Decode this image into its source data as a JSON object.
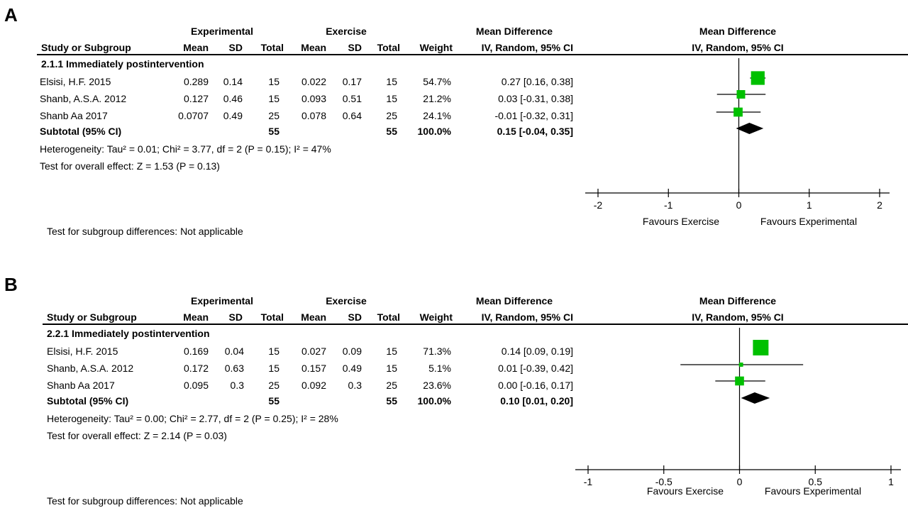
{
  "panels": [
    {
      "letter": "A",
      "headers": {
        "experimental": "Experimental",
        "exercise": "Exercise",
        "mean_difference": "Mean Difference",
        "study_or_subgroup": "Study or Subgroup",
        "mean": "Mean",
        "sd": "SD",
        "total": "Total",
        "weight": "Weight",
        "md_method": "IV, Random, 95% CI",
        "plot_title": "Mean Difference",
        "plot_method": "IV, Random, 95% CI"
      },
      "subgroup_title": "2.1.1 Immediately postintervention",
      "studies": [
        {
          "name": "Elsisi, H.F. 2015",
          "exp_mean": "0.289",
          "exp_sd": "0.14",
          "exp_total": "15",
          "ctl_mean": "0.022",
          "ctl_sd": "0.17",
          "ctl_total": "15",
          "weight": "54.7%",
          "ci_text": "0.27 [0.16, 0.38]"
        },
        {
          "name": "Shanb, A.S.A. 2012",
          "exp_mean": "0.127",
          "exp_sd": "0.46",
          "exp_total": "15",
          "ctl_mean": "0.093",
          "ctl_sd": "0.51",
          "ctl_total": "15",
          "weight": "21.2%",
          "ci_text": "0.03 [-0.31, 0.38]"
        },
        {
          "name": "Shanb Aa 2017",
          "exp_mean": "0.0707",
          "exp_sd": "0.49",
          "exp_total": "25",
          "ctl_mean": "0.078",
          "ctl_sd": "0.64",
          "ctl_total": "25",
          "weight": "24.1%",
          "ci_text": "-0.01 [-0.32, 0.31]"
        }
      ],
      "subtotal": {
        "label": "Subtotal (95% CI)",
        "exp_total": "55",
        "ctl_total": "55",
        "weight": "100.0%",
        "ci_text": "0.15 [-0.04, 0.35]"
      },
      "heterogeneity": "Heterogeneity: Tau² = 0.01; Chi² = 3.77, df = 2 (P = 0.15); I² = 47%",
      "overall_effect": "Test for overall effect: Z = 1.53 (P = 0.13)",
      "subgroup_differences": "Test for subgroup differences: Not applicable",
      "favours_left": "Favours Exercise",
      "favours_right": "Favours Experimental"
    },
    {
      "letter": "B",
      "headers": {
        "experimental": "Experimental",
        "exercise": "Exercise",
        "mean_difference": "Mean Difference",
        "study_or_subgroup": "Study or Subgroup",
        "mean": "Mean",
        "sd": "SD",
        "total": "Total",
        "weight": "Weight",
        "md_method": "IV, Random, 95% CI",
        "plot_title": "Mean Difference",
        "plot_method": "IV, Random, 95% CI"
      },
      "subgroup_title": "2.2.1 Immediately postintervention",
      "studies": [
        {
          "name": "Elsisi, H.F. 2015",
          "exp_mean": "0.169",
          "exp_sd": "0.04",
          "exp_total": "15",
          "ctl_mean": "0.027",
          "ctl_sd": "0.09",
          "ctl_total": "15",
          "weight": "71.3%",
          "ci_text": "0.14 [0.09, 0.19]"
        },
        {
          "name": "Shanb, A.S.A. 2012",
          "exp_mean": "0.172",
          "exp_sd": "0.63",
          "exp_total": "15",
          "ctl_mean": "0.157",
          "ctl_sd": "0.49",
          "ctl_total": "15",
          "weight": "5.1%",
          "ci_text": "0.01 [-0.39, 0.42]"
        },
        {
          "name": "Shanb Aa 2017",
          "exp_mean": "0.095",
          "exp_sd": "0.3",
          "exp_total": "25",
          "ctl_mean": "0.092",
          "ctl_sd": "0.3",
          "ctl_total": "25",
          "weight": "23.6%",
          "ci_text": "0.00 [-0.16, 0.17]"
        }
      ],
      "subtotal": {
        "label": "Subtotal (95% CI)",
        "exp_total": "55",
        "ctl_total": "55",
        "weight": "100.0%",
        "ci_text": "0.10 [0.01, 0.20]"
      },
      "heterogeneity": "Heterogeneity: Tau² = 0.00; Chi² = 2.77, df = 2 (P = 0.25); I² = 28%",
      "overall_effect": "Test for overall effect: Z = 2.14 (P = 0.03)",
      "subgroup_differences": "Test for subgroup differences: Not applicable",
      "favours_left": "Favours Exercise",
      "favours_right": "Favours Experimental"
    }
  ],
  "chart_data": [
    {
      "type": "scatter",
      "xlim": [
        -2,
        2
      ],
      "ticks": [
        "-2",
        "-1",
        "0",
        "1",
        "2"
      ],
      "tick_values": [
        -2,
        -1,
        0,
        1,
        2
      ],
      "studies": [
        {
          "md": 0.27,
          "lo": 0.16,
          "hi": 0.38,
          "weight": 54.7
        },
        {
          "md": 0.03,
          "lo": -0.31,
          "hi": 0.38,
          "weight": 21.2
        },
        {
          "md": -0.01,
          "lo": -0.32,
          "hi": 0.31,
          "weight": 24.1
        }
      ],
      "subtotal": {
        "md": 0.15,
        "lo": -0.04,
        "hi": 0.35
      },
      "marker_color": "#00c000"
    },
    {
      "type": "scatter",
      "xlim": [
        -1,
        1
      ],
      "ticks": [
        "-1",
        "-0.5",
        "0",
        "0.5",
        "1"
      ],
      "tick_values": [
        -1,
        -0.5,
        0,
        0.5,
        1
      ],
      "studies": [
        {
          "md": 0.14,
          "lo": 0.09,
          "hi": 0.19,
          "weight": 71.3
        },
        {
          "md": 0.01,
          "lo": -0.39,
          "hi": 0.42,
          "weight": 5.1
        },
        {
          "md": 0.0,
          "lo": -0.16,
          "hi": 0.17,
          "weight": 23.6
        }
      ],
      "subtotal": {
        "md": 0.1,
        "lo": 0.01,
        "hi": 0.2
      },
      "marker_color": "#00c000"
    }
  ]
}
